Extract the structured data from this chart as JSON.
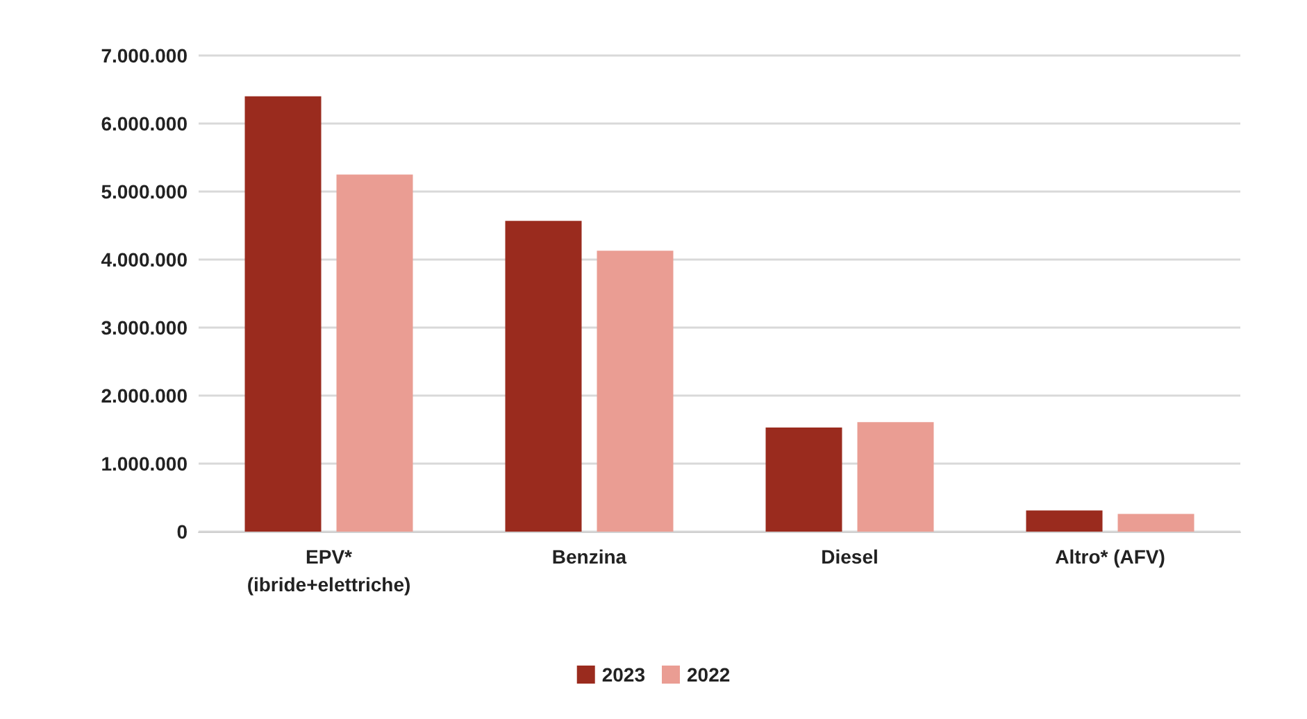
{
  "chart_data": {
    "type": "bar",
    "categories": [
      "EPV*\n(ibride+elettriche)",
      "Benzina",
      "Diesel",
      "Altro* (AFV)"
    ],
    "series": [
      {
        "name": "2023",
        "color": "#9a2b1e",
        "values": [
          6400000,
          4570000,
          1530000,
          310000
        ]
      },
      {
        "name": "2022",
        "color": "#ea9d93",
        "values": [
          5250000,
          4130000,
          1610000,
          260000
        ]
      }
    ],
    "ylim": [
      0,
      7000000
    ],
    "yticks": [
      {
        "value": 0,
        "label": "0"
      },
      {
        "value": 1000000,
        "label": "1.000.000"
      },
      {
        "value": 2000000,
        "label": "2.000.000"
      },
      {
        "value": 3000000,
        "label": "3.000.000"
      },
      {
        "value": 4000000,
        "label": "4.000.000"
      },
      {
        "value": 5000000,
        "label": "5.000.000"
      },
      {
        "value": 6000000,
        "label": "6.000.000"
      },
      {
        "value": 7000000,
        "label": "7.000.000"
      }
    ],
    "grid": "y",
    "legend": "bottom"
  }
}
